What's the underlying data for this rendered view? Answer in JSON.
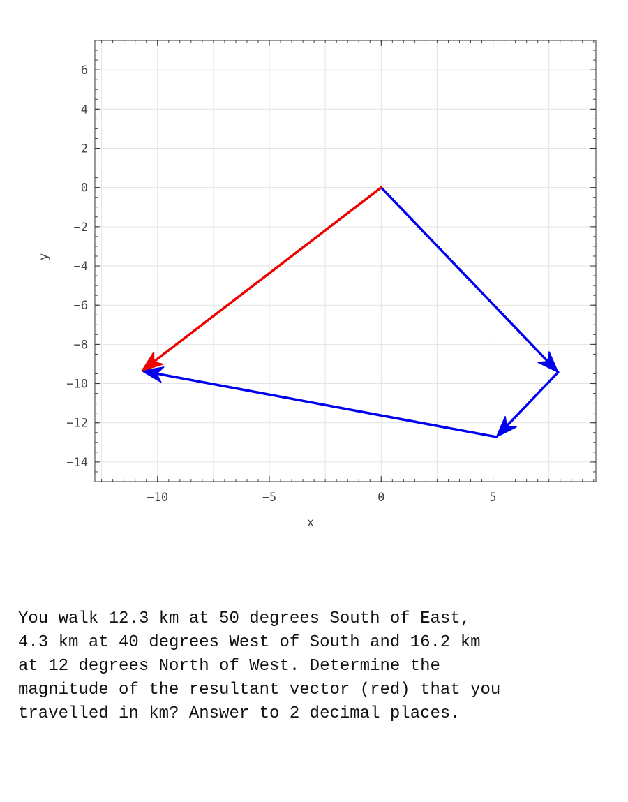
{
  "chart_data": {
    "type": "vector-plot",
    "xlabel": "x",
    "ylabel": "y",
    "xlim": [
      -12.8,
      9.6
    ],
    "ylim": [
      -15.0,
      7.5
    ],
    "x_ticks": [
      -10,
      -5,
      0,
      5
    ],
    "y_ticks": [
      6,
      4,
      2,
      0,
      -2,
      -4,
      -6,
      -8,
      -10,
      -12,
      -14
    ],
    "grid": true,
    "vectors": [
      {
        "from": [
          0,
          0
        ],
        "to": [
          7.91,
          -9.42
        ],
        "color": "#0000ee"
      },
      {
        "from": [
          7.91,
          -9.42
        ],
        "to": [
          5.15,
          -12.72
        ],
        "color": "#0000ee"
      },
      {
        "from": [
          5.15,
          -12.72
        ],
        "to": [
          -10.7,
          -9.35
        ],
        "color": "#0000ee"
      },
      {
        "from": [
          0,
          0
        ],
        "to": [
          -10.7,
          -9.35
        ],
        "color": "#ee0000"
      }
    ]
  },
  "question": {
    "text": "You walk 12.3 km at 50 degrees South of East,\n4.3 km at 40 degrees West of South and 16.2 km\nat 12 degrees North of West.  Determine the\nmagnitude of the resultant vector (red) that you\ntravelled in km? Answer to 2 decimal places."
  }
}
